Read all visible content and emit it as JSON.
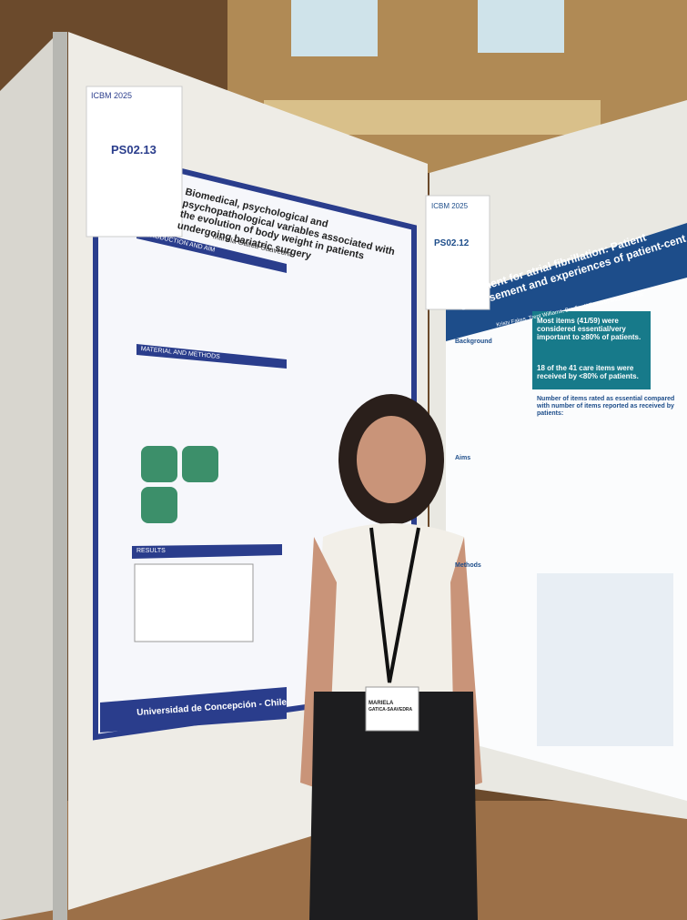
{
  "left_poster": {
    "tag": "PS02.13",
    "conference": "ICBM 2025",
    "title": "Biomedical, psychological and psychopathological variables associated with the evolution of body weight in patients undergoing bariatric surgery",
    "author": "Mariela Gatica-Saavedra",
    "sections": [
      "INTRODUCTION AND AIM",
      "MATERIAL AND METHODS",
      "RESULTS"
    ],
    "footer": "Universidad de Concepción - Chile"
  },
  "right_poster": {
    "tag": "PS02.12",
    "conference": "ICBM 2025",
    "title": "Treatment for atrial fibrillation: Patient endorsement and experiences of patient-cent",
    "authors": "Kristy Fakes, Trent Williams, Bradley Wilsmore, Mikaela White",
    "sections": [
      "Background",
      "Aims",
      "Methods"
    ],
    "highlight_1": "Most items (41/59) were considered essential/very important to ≥80% of patients.",
    "highlight_2": "18 of the 41 care items were received by <80% of patients.",
    "chart_title": "Number of items rated as essential compared with number of items reported as received by patients:"
  },
  "badge": {
    "first_name": "MARIELA",
    "last_name": "GATICA-SAAVEDRA"
  }
}
